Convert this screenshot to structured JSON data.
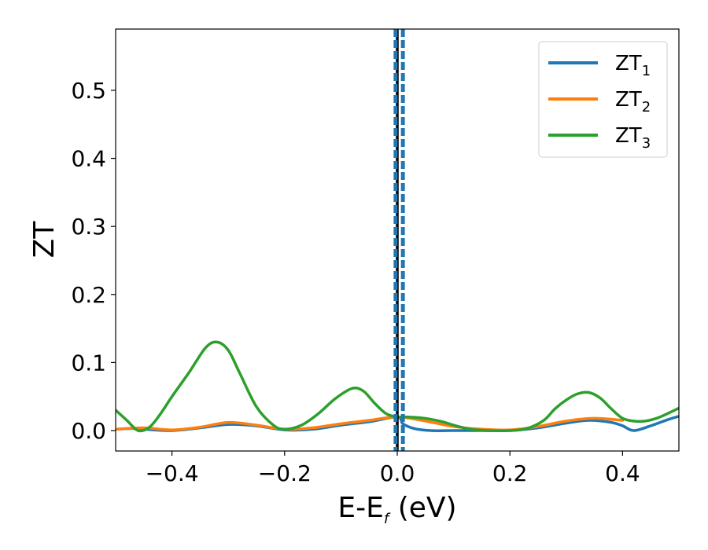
{
  "chart_data": {
    "type": "line",
    "title": "",
    "xlabel_main": "E-E",
    "xlabel_sub": "f",
    "xlabel_unit": " (eV)",
    "ylabel": "ZT",
    "xlim": [
      -0.5,
      0.5
    ],
    "ylim": [
      -0.03,
      0.59
    ],
    "xticks": [
      -0.4,
      -0.2,
      0.0,
      0.2,
      0.4
    ],
    "xtick_labels": [
      "−0.4",
      "−0.2",
      "0.0",
      "0.2",
      "0.4"
    ],
    "yticks": [
      0.0,
      0.1,
      0.2,
      0.3,
      0.4,
      0.5
    ],
    "ytick_labels": [
      "0.0",
      "0.1",
      "0.2",
      "0.3",
      "0.4",
      "0.5"
    ],
    "grid": false,
    "legend_position": "top-right",
    "vertical_lines": [
      {
        "x": 0.0,
        "color": "#000000",
        "style": "solid"
      },
      {
        "x": -0.003,
        "color": "#1f77b4",
        "style": "dashed"
      },
      {
        "x": 0.01,
        "color": "#1f77b4",
        "style": "dashed"
      }
    ],
    "series": [
      {
        "name": "ZT",
        "sub": "1",
        "color": "#1f77b4",
        "x": [
          -0.5,
          -0.47,
          -0.45,
          -0.4,
          -0.35,
          -0.3,
          -0.25,
          -0.2,
          -0.15,
          -0.1,
          -0.05,
          0.0,
          0.01,
          0.03,
          0.06,
          0.1,
          0.15,
          0.2,
          0.25,
          0.3,
          0.34,
          0.38,
          0.4,
          0.42,
          0.45,
          0.48,
          0.5
        ],
        "y": [
          0.002,
          0.003,
          0.002,
          0.0,
          0.004,
          0.009,
          0.007,
          0.001,
          0.002,
          0.008,
          0.013,
          0.02,
          0.01,
          0.003,
          0.0,
          0.0,
          0.0,
          0.0,
          0.004,
          0.011,
          0.015,
          0.012,
          0.007,
          0.0,
          0.007,
          0.016,
          0.021
        ]
      },
      {
        "name": "ZT",
        "sub": "2",
        "color": "#ff7f0e",
        "x": [
          -0.5,
          -0.45,
          -0.4,
          -0.35,
          -0.3,
          -0.25,
          -0.2,
          -0.15,
          -0.1,
          -0.05,
          0.0,
          0.05,
          0.1,
          0.15,
          0.2,
          0.25,
          0.3,
          0.35,
          0.4
        ],
        "y": [
          0.002,
          0.004,
          0.001,
          0.005,
          0.012,
          0.008,
          0.002,
          0.004,
          0.01,
          0.015,
          0.02,
          0.014,
          0.006,
          0.002,
          0.001,
          0.006,
          0.014,
          0.018,
          0.015
        ]
      },
      {
        "name": "ZT",
        "sub": "3",
        "color": "#2ca02c",
        "x": [
          -0.5,
          -0.48,
          -0.46,
          -0.44,
          -0.42,
          -0.4,
          -0.37,
          -0.34,
          -0.32,
          -0.3,
          -0.28,
          -0.25,
          -0.22,
          -0.2,
          -0.17,
          -0.14,
          -0.11,
          -0.08,
          -0.06,
          -0.04,
          -0.02,
          0.0,
          0.02,
          0.05,
          0.08,
          0.1,
          0.13,
          0.16,
          0.2,
          0.23,
          0.26,
          0.28,
          0.3,
          0.32,
          0.34,
          0.36,
          0.38,
          0.4,
          0.42,
          0.44,
          0.46,
          0.48,
          0.5
        ],
        "y": [
          0.03,
          0.015,
          0.0,
          0.005,
          0.025,
          0.05,
          0.085,
          0.122,
          0.13,
          0.118,
          0.085,
          0.035,
          0.008,
          0.002,
          0.008,
          0.025,
          0.047,
          0.062,
          0.058,
          0.04,
          0.025,
          0.02,
          0.02,
          0.018,
          0.013,
          0.008,
          0.002,
          0.0,
          0.0,
          0.003,
          0.015,
          0.032,
          0.045,
          0.054,
          0.056,
          0.048,
          0.032,
          0.018,
          0.014,
          0.014,
          0.018,
          0.025,
          0.033
        ]
      }
    ]
  }
}
